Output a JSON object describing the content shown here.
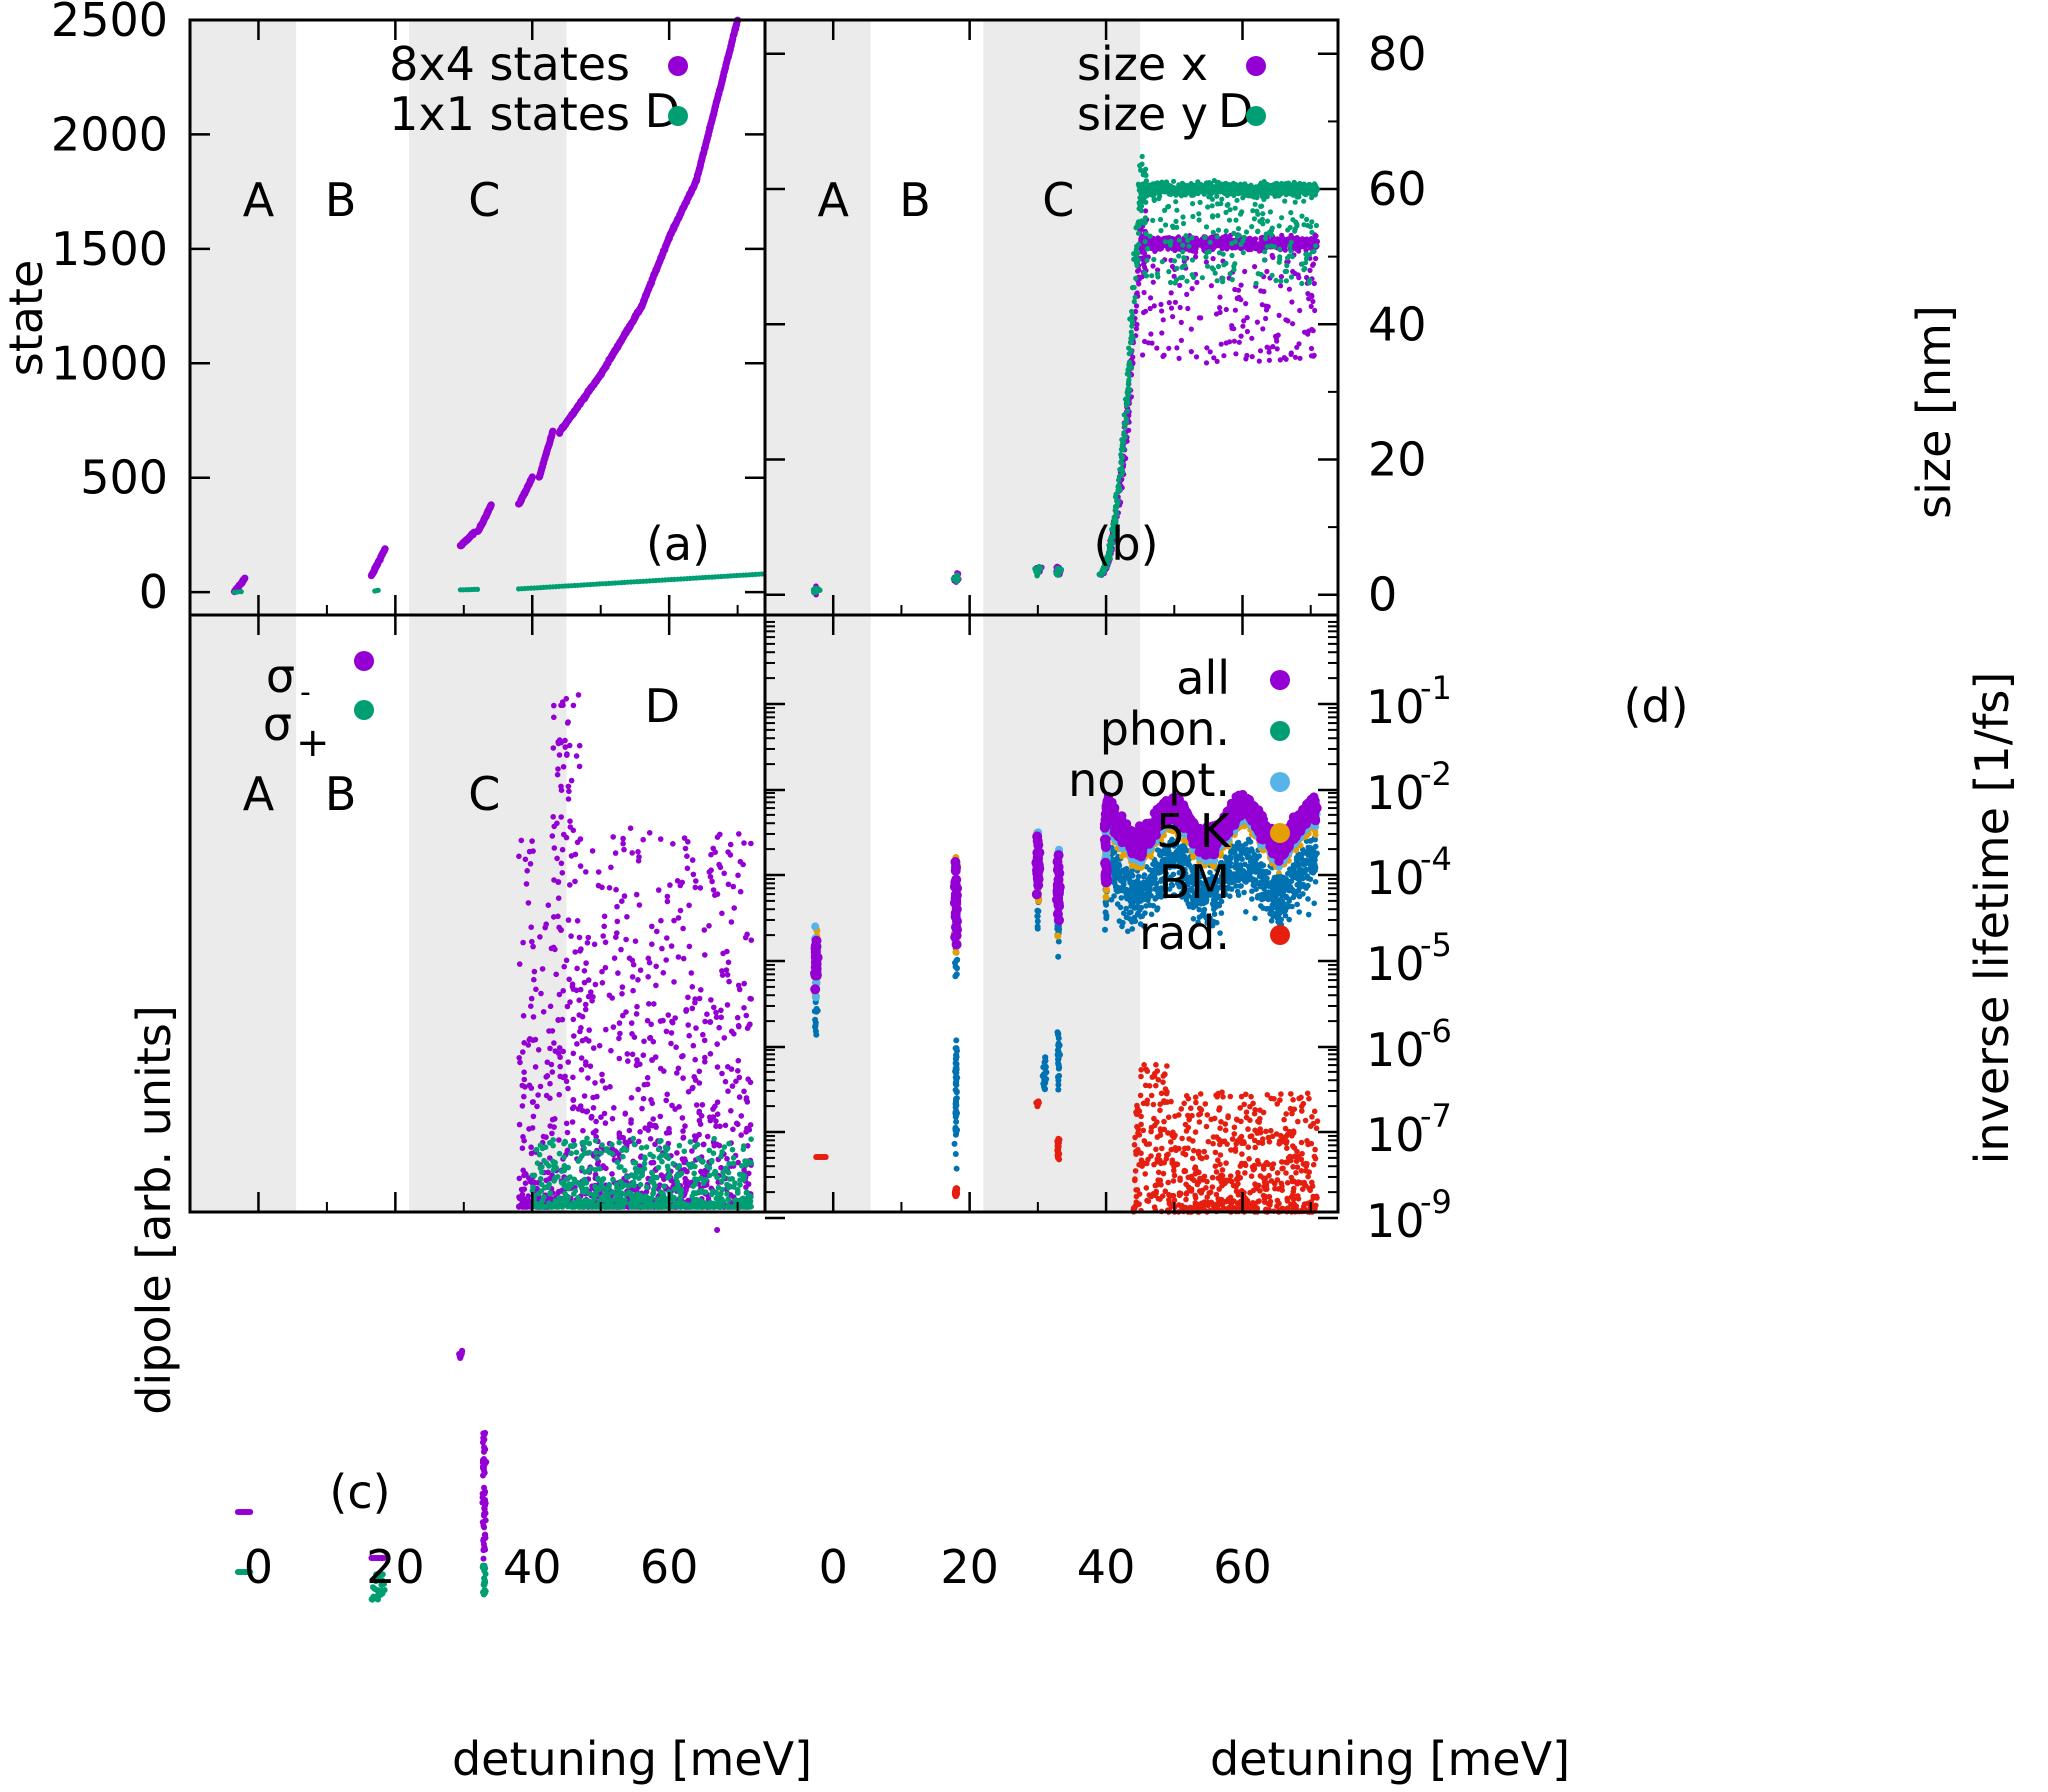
{
  "figure": {
    "xlabel_left": "detuning [meV]",
    "xlabel_right": "detuning [meV]",
    "colors": {
      "purple": "#9400d3",
      "green": "#009e73",
      "lightblue": "#56b4e9",
      "orange": "#e69f00",
      "blue": "#0072b2",
      "red": "#e51e10",
      "shade": "#ebebeb"
    }
  },
  "chart_data": [
    {
      "id": "a",
      "type": "scatter",
      "panel_label": "(a)",
      "ylabel": "state",
      "xlim": [
        -10,
        74
      ],
      "ylim": [
        -100,
        2500
      ],
      "xticks": [
        "0",
        "20",
        "40",
        "60"
      ],
      "yticks": [
        "0",
        "500",
        "1000",
        "1500",
        "2000",
        "2500"
      ],
      "regions": [
        "A",
        "B",
        "C",
        "D"
      ],
      "legend": [
        "8x4 states",
        "1x1 states"
      ],
      "series": [
        {
          "name": "8x4 states",
          "color": "#9400d3",
          "segments": [
            [
              -3.5,
              0,
              -2,
              60
            ],
            [
              16.5,
              70,
              18.5,
              190
            ],
            [
              29.5,
              200,
              31.5,
              260
            ],
            [
              32,
              260,
              34,
              380
            ],
            [
              38,
              380,
              40,
              500
            ],
            [
              41,
              500,
              43,
              700
            ],
            [
              44,
              700,
              50,
              950
            ],
            [
              50,
              950,
              56,
              1250
            ],
            [
              56,
              1250,
              60,
              1550
            ],
            [
              60,
              1550,
              64,
              1800
            ],
            [
              64,
              1800,
              70,
              2500
            ]
          ]
        },
        {
          "name": "1x1 states",
          "color": "#009e73",
          "segments": [
            [
              -3.5,
              0,
              -2.5,
              2
            ],
            [
              17,
              5,
              17.5,
              8
            ],
            [
              29.5,
              10,
              32,
              12
            ],
            [
              38,
              14,
              74,
              80
            ]
          ]
        }
      ]
    },
    {
      "id": "b",
      "type": "scatter",
      "panel_label": "(b)",
      "ylabel": "size [nm]",
      "xlim": [
        -10,
        74
      ],
      "ylim": [
        -3,
        85
      ],
      "xticks": [
        "0",
        "20",
        "40",
        "60"
      ],
      "yticks": [
        "0",
        "20",
        "40",
        "60",
        "80"
      ],
      "regions": [
        "A",
        "B",
        "C",
        "D"
      ],
      "legend": [
        "size x",
        "size y"
      ],
      "series": [
        {
          "name": "size x",
          "color": "#9400d3",
          "plateau": 52,
          "rise_start": 39,
          "rise_end": 45
        },
        {
          "name": "size y",
          "color": "#009e73",
          "plateau": 60,
          "rise_start": 39,
          "rise_end": 45
        }
      ]
    },
    {
      "id": "c",
      "type": "scatter",
      "panel_label": "(c)",
      "ylabel": "dipole [arb. units]",
      "xlim": [
        -10,
        74
      ],
      "xticks": [
        "0",
        "20",
        "40",
        "60"
      ],
      "regions": [
        "A",
        "B",
        "C",
        "D"
      ],
      "legend_base": [
        "σ",
        "σ"
      ],
      "legend_sub": [
        "-",
        "+"
      ],
      "series": [
        {
          "name": "σ-",
          "color": "#9400d3"
        },
        {
          "name": "σ+",
          "color": "#009e73"
        }
      ]
    },
    {
      "id": "d",
      "type": "scatter",
      "panel_label": "(d)",
      "ylabel": "inverse lifetime [1/fs]",
      "xlim": [
        -10,
        74
      ],
      "ylim_log10": [
        -9.6,
        -0.6
      ],
      "xticks": [
        "0",
        "20",
        "40",
        "60"
      ],
      "ytick_base": "10",
      "ytick_exponents": [
        "-1",
        "-2",
        "-4",
        "-5",
        "-6",
        "-7",
        "-9"
      ],
      "legend": [
        "all",
        "phon.",
        "no opt.",
        "5 K",
        "BM",
        "rad."
      ],
      "series": [
        {
          "name": "all",
          "color": "#9400d3"
        },
        {
          "name": "phon.",
          "color": "#009e73"
        },
        {
          "name": "no opt.",
          "color": "#56b4e9"
        },
        {
          "name": "5 K",
          "color": "#e69f00"
        },
        {
          "name": "BM",
          "color": "#0072b2"
        },
        {
          "name": "rad.",
          "color": "#e51e10"
        }
      ]
    }
  ]
}
